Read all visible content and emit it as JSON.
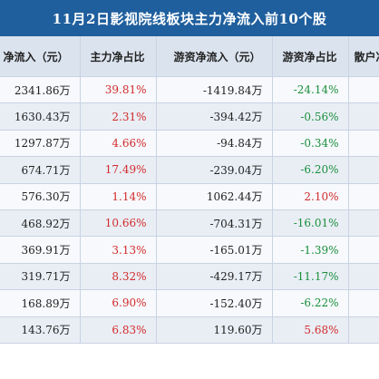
{
  "title": "11月2日影视院线板块主力净流入前10个股",
  "headers": [
    "净流入（元）",
    "主力净占比",
    "游资净流入（元）",
    "游资净占比",
    "散户净"
  ],
  "rows": [
    {
      "main_inflow": "2341.86万",
      "main_pct": "39.81%",
      "hot_inflow": "-1419.84万",
      "hot_pct": "-24.14%",
      "main_color": "red",
      "hot_color": "green"
    },
    {
      "main_inflow": "1630.43万",
      "main_pct": "2.31%",
      "hot_inflow": "-394.42万",
      "hot_pct": "-0.56%",
      "main_color": "red",
      "hot_color": "green"
    },
    {
      "main_inflow": "1297.87万",
      "main_pct": "4.66%",
      "hot_inflow": "-94.84万",
      "hot_pct": "-0.34%",
      "main_color": "red",
      "hot_color": "green"
    },
    {
      "main_inflow": "674.71万",
      "main_pct": "17.49%",
      "hot_inflow": "-239.04万",
      "hot_pct": "-6.20%",
      "main_color": "red",
      "hot_color": "green"
    },
    {
      "main_inflow": "576.30万",
      "main_pct": "1.14%",
      "hot_inflow": "1062.44万",
      "hot_pct": "2.10%",
      "main_color": "red",
      "hot_color": "red"
    },
    {
      "main_inflow": "468.92万",
      "main_pct": "10.66%",
      "hot_inflow": "-704.31万",
      "hot_pct": "-16.01%",
      "main_color": "red",
      "hot_color": "green"
    },
    {
      "main_inflow": "369.91万",
      "main_pct": "3.13%",
      "hot_inflow": "-165.01万",
      "hot_pct": "-1.39%",
      "main_color": "red",
      "hot_color": "green"
    },
    {
      "main_inflow": "319.71万",
      "main_pct": "8.32%",
      "hot_inflow": "-429.17万",
      "hot_pct": "-11.17%",
      "main_color": "red",
      "hot_color": "green"
    },
    {
      "main_inflow": "168.89万",
      "main_pct": "6.90%",
      "hot_inflow": "-152.40万",
      "hot_pct": "-6.22%",
      "main_color": "red",
      "hot_color": "green"
    },
    {
      "main_inflow": "143.76万",
      "main_pct": "6.83%",
      "hot_inflow": "119.60万",
      "hot_pct": "5.68%",
      "main_color": "red",
      "hot_color": "red"
    }
  ],
  "colors": {
    "header_bg": "#1f5f9e",
    "red": "#d22b2b",
    "green": "#1a8f3c",
    "row_alt": "#e9eef5"
  }
}
